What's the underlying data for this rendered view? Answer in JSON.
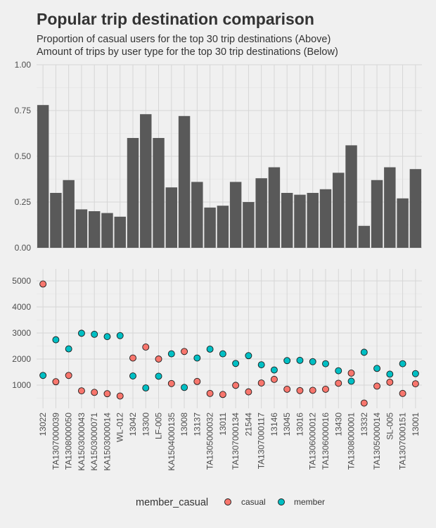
{
  "title": "Popular trip destination comparison",
  "subtitle_lines": [
    "Proportion of casual users for the top 30 trip destinations (Above)",
    "Amount of trips by user type for the top 30 trip destinations (Below)"
  ],
  "colors": {
    "bar": "#595959",
    "casual": "#F8766D",
    "member": "#00BFC4",
    "grid": "#d6d6d6",
    "background": "#f0f0f0"
  },
  "chart_data": [
    {
      "type": "bar",
      "categories": [
        "13022",
        "TA1307000039",
        "TA1308000050",
        "KA1503000043",
        "KA1503000071",
        "KA1503000014",
        "WL-012",
        "13042",
        "13300",
        "LF-005",
        "KA1504000135",
        "13008",
        "13137",
        "TA1305000032",
        "13011",
        "TA1307000134",
        "21544",
        "TA1307000117",
        "13146",
        "13045",
        "13016",
        "TA1306000012",
        "TA1306000016",
        "13430",
        "TA1308000001",
        "13332",
        "TA1305000014",
        "SL-005",
        "TA1307000151",
        "13001"
      ],
      "values": [
        0.78,
        0.3,
        0.37,
        0.21,
        0.2,
        0.19,
        0.17,
        0.6,
        0.73,
        0.6,
        0.33,
        0.72,
        0.36,
        0.22,
        0.23,
        0.36,
        0.25,
        0.38,
        0.44,
        0.3,
        0.29,
        0.3,
        0.32,
        0.41,
        0.56,
        0.12,
        0.37,
        0.44,
        0.27,
        0.43
      ],
      "ylim": [
        0,
        1
      ],
      "yticks": [
        "0.00",
        "0.25",
        "0.50",
        "0.75",
        "1.00"
      ],
      "grid": true
    },
    {
      "type": "scatter",
      "categories": [
        "13022",
        "TA1307000039",
        "TA1308000050",
        "KA1503000043",
        "KA1503000071",
        "KA1503000014",
        "WL-012",
        "13042",
        "13300",
        "LF-005",
        "KA1504000135",
        "13008",
        "13137",
        "TA1305000032",
        "13011",
        "TA1307000134",
        "21544",
        "TA1307000117",
        "13146",
        "13045",
        "13016",
        "TA1306000012",
        "TA1306000016",
        "13430",
        "TA1308000001",
        "13332",
        "TA1305000014",
        "SL-005",
        "TA1307000151",
        "13001"
      ],
      "series": [
        {
          "name": "casual",
          "values": [
            4880,
            1130,
            1370,
            780,
            720,
            670,
            580,
            2040,
            2460,
            2000,
            1060,
            2290,
            1140,
            680,
            640,
            990,
            740,
            1080,
            1220,
            840,
            790,
            800,
            840,
            1070,
            1460,
            310,
            960,
            1110,
            680,
            1050
          ]
        },
        {
          "name": "member",
          "values": [
            1370,
            2740,
            2390,
            2990,
            2950,
            2860,
            2900,
            1350,
            890,
            1340,
            2200,
            910,
            2040,
            2380,
            2200,
            1830,
            2130,
            1780,
            1580,
            1940,
            1950,
            1900,
            1820,
            1550,
            1150,
            2260,
            1640,
            1420,
            1820,
            1440
          ]
        }
      ],
      "ylim": [
        0,
        5500
      ],
      "yticks": [
        "1000",
        "2000",
        "3000",
        "4000",
        "5000"
      ],
      "grid": true,
      "legend": {
        "title": "member_casual",
        "position": "bottom",
        "entries": [
          "casual",
          "member"
        ]
      }
    }
  ]
}
